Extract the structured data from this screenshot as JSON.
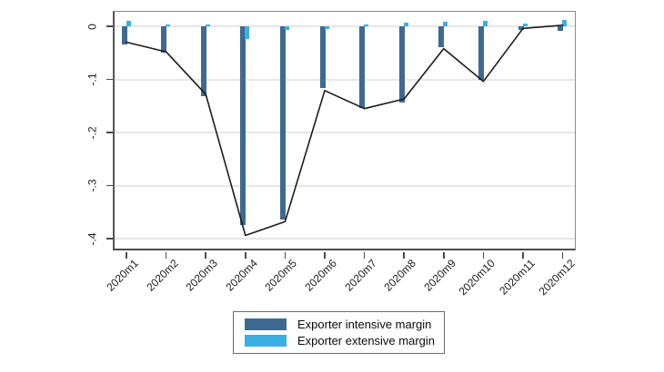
{
  "chart_data": {
    "type": "bar",
    "subtype": "bar-and-line-combo",
    "title": "",
    "xlabel": "",
    "ylabel": "",
    "categories": [
      "2020m1",
      "2020m2",
      "2020m3",
      "2020m4",
      "2020m5",
      "2020m6",
      "2020m7",
      "2020m8",
      "2020m9",
      "2020m10",
      "2020m11",
      "2020m12"
    ],
    "series": [
      {
        "name": "Exporter intensive margin",
        "type": "bar",
        "color": "#3e6a92",
        "values": [
          -0.035,
          -0.05,
          -0.132,
          -0.375,
          -0.364,
          -0.117,
          -0.154,
          -0.144,
          -0.04,
          -0.101,
          -0.006,
          -0.008
        ]
      },
      {
        "name": "Exporter extensive margin",
        "type": "bar",
        "color": "#3bafe2",
        "values": [
          0.011,
          0.004,
          0.003,
          -0.024,
          -0.006,
          -0.004,
          0.002,
          0.007,
          0.008,
          0.01,
          0.005,
          0.012
        ]
      },
      {
        "name": "line",
        "type": "line",
        "color": "#1b1b1b",
        "values": [
          -0.03,
          -0.048,
          -0.128,
          -0.394,
          -0.368,
          -0.121,
          -0.155,
          -0.137,
          -0.042,
          -0.104,
          -0.004,
          0.002
        ]
      }
    ],
    "ylim": [
      -0.422,
      0.029
    ],
    "yticks": [
      {
        "value": 0,
        "label": "0"
      },
      {
        "value": -0.1,
        "label": "-.1"
      },
      {
        "value": -0.2,
        "label": "-.2"
      },
      {
        "value": -0.3,
        "label": "-.3"
      },
      {
        "value": -0.4,
        "label": "-.4"
      }
    ],
    "grid": true,
    "legend_position": "bottom-center",
    "legend": [
      {
        "label": "Exporter intensive margin",
        "color": "#3e6a92"
      },
      {
        "label": "Exporter extensive margin",
        "color": "#3bafe2"
      }
    ]
  }
}
